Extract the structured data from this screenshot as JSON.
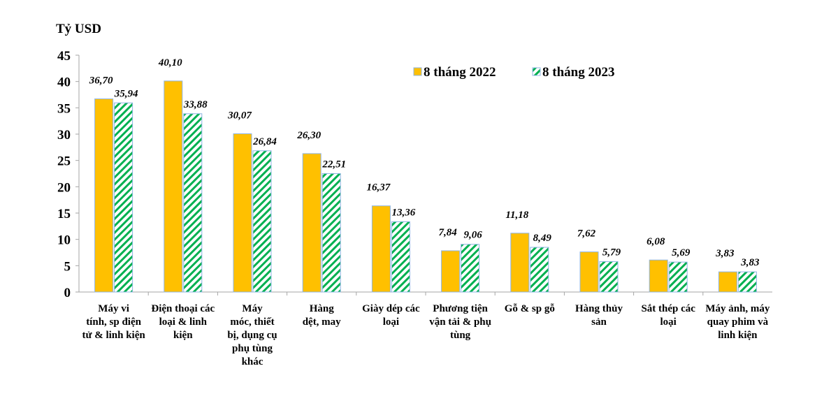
{
  "chart_data": {
    "type": "bar",
    "ylabel": "Tỷ USD",
    "ylim": [
      0,
      45
    ],
    "yticks": [
      0,
      5,
      10,
      15,
      20,
      25,
      30,
      35,
      40,
      45
    ],
    "grid": false,
    "legend_position": "top-center",
    "categories": [
      [
        "Máy vi",
        "tính, sp điện",
        "tử & linh kiện"
      ],
      [
        "Điện thoại các",
        "loại & linh",
        "kiện"
      ],
      [
        "Máy",
        "móc, thiết",
        "bị, dụng cụ",
        "phụ tùng",
        "khác"
      ],
      [
        "Hàng",
        "dệt, may"
      ],
      [
        "Giày dép các",
        "loại"
      ],
      [
        "Phương tiện",
        "vận tải & phụ",
        "tùng"
      ],
      [
        "Gỗ & sp gỗ"
      ],
      [
        "Hàng thủy",
        "sản"
      ],
      [
        "Sắt thép các",
        "loại"
      ],
      [
        "Máy ảnh, máy",
        "quay phim và",
        "linh kiện"
      ]
    ],
    "series": [
      {
        "name": "8 tháng 2022",
        "color": "#FFC000",
        "pattern": "solid",
        "values": [
          36.7,
          40.1,
          30.07,
          26.3,
          16.37,
          7.84,
          11.18,
          7.62,
          6.08,
          3.83
        ],
        "labels": [
          "36,70",
          "40,10",
          "30,07",
          "26,30",
          "16,37",
          "7,84",
          "11,18",
          "7,62",
          "6,08",
          "3,83"
        ]
      },
      {
        "name": "8 tháng 2023",
        "color": "#00B050",
        "pattern": "diagonal-hatch",
        "values": [
          35.94,
          33.88,
          26.84,
          22.51,
          13.36,
          9.06,
          8.49,
          5.79,
          5.69,
          3.83
        ],
        "labels": [
          "35,94",
          "33,88",
          "26,84",
          "22,51",
          "13,36",
          "9,06",
          "8,49",
          "5,79",
          "5,69",
          "3,83"
        ]
      }
    ]
  }
}
